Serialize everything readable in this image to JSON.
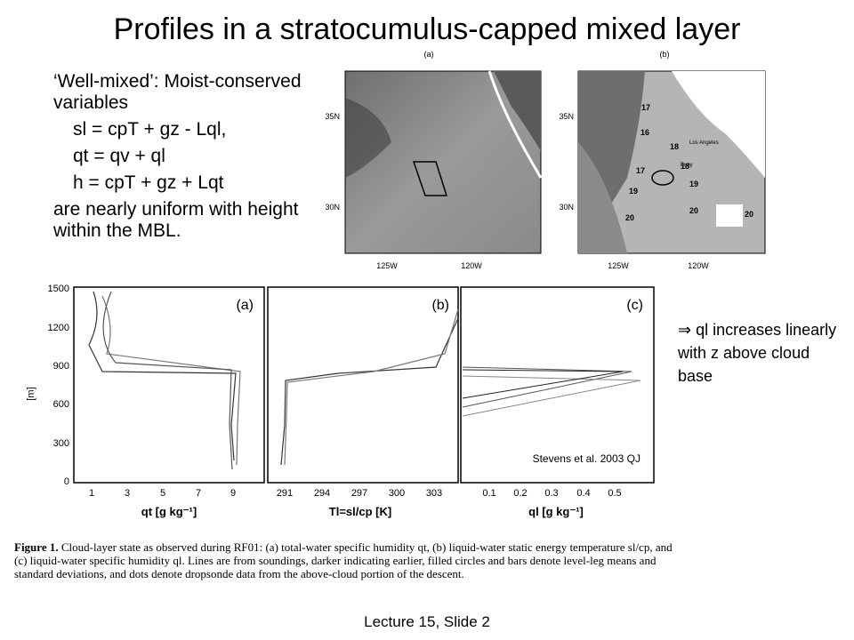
{
  "title": "Profiles in a stratocumulus-capped mixed layer",
  "bullets": {
    "intro": "‘Well-mixed’: Moist-conserved variables",
    "eq1": "sl = cpT + gz - Lql,",
    "eq2": "qt = qv + ql",
    "eq3": "h = cpT + gz + Lqt",
    "outro": "are nearly uniform with height within the MBL."
  },
  "maps": {
    "a": {
      "label": "(a)",
      "lat1": "35N",
      "lat2": "30N",
      "lon1": "125W",
      "lon2": "120W"
    },
    "b": {
      "label": "(b)",
      "lat1": "35N",
      "lat2": "30N",
      "lon1": "125W",
      "lon2": "120W",
      "city": "Los Angeles",
      "buoy": "Buoy",
      "contours": [
        "17",
        "16",
        "18",
        "17",
        "18",
        "19",
        "19",
        "20",
        "20",
        "20"
      ]
    }
  },
  "profiles": {
    "ylabel": "[m]",
    "yticks": [
      "1500",
      "1200",
      "900",
      "600",
      "300",
      "0"
    ],
    "panel_a": {
      "tag": "(a)",
      "xticks": [
        "1",
        "3",
        "5",
        "7",
        "9"
      ],
      "xlabel": "qt [g kg⁻¹]"
    },
    "panel_b": {
      "tag": "(b)",
      "xticks": [
        "291",
        "294",
        "297",
        "300",
        "303"
      ],
      "xlabel": "Tl=sl/cp [K]"
    },
    "panel_c": {
      "tag": "(c)",
      "xticks": [
        "0.1",
        "0.2",
        "0.3",
        "0.4",
        "0.5"
      ],
      "xlabel": "ql [g kg⁻¹]"
    },
    "citation": "Stevens et al. 2003 QJ"
  },
  "note": "⇒ ql increases linearly with z above cloud base",
  "caption": {
    "label": "Figure 1.",
    "text": "Cloud-layer state as observed during RF01: (a) total-water specific humidity qt, (b) liquid-water static energy temperature sl/cp, and (c) liquid-water specific humidity ql. Lines are from soundings, darker indicating earlier, filled circles and bars denote level-leg means and standard deviations, and dots denote dropsonde data from the above-cloud portion of the descent."
  },
  "footer": "Lecture 15, Slide 2"
}
